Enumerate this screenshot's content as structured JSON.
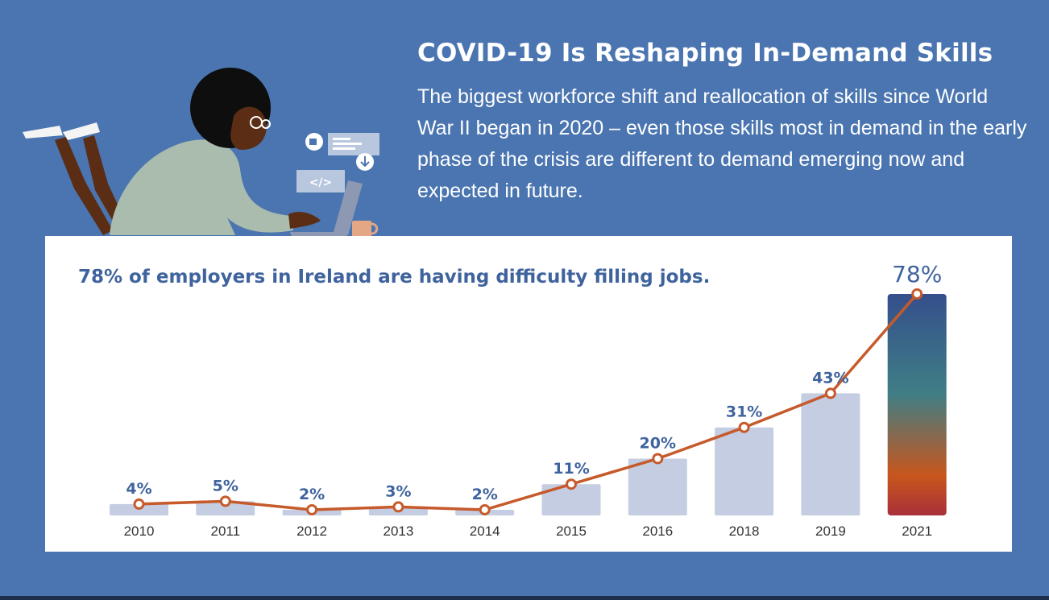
{
  "header": {
    "title": "COVID-19 Is Reshaping In-Demand Skills",
    "intro": "The biggest workforce shift and reallocation of skills since World War II began in 2020 – even those skills most in demand in the early phase of the crisis are different to demand emerging now and expected in future."
  },
  "illustration": {
    "code_tag": "</>",
    "icons": [
      "video-camera-icon",
      "chat-lines-icon",
      "download-icon",
      "code-tag-icon",
      "laptop-icon",
      "coffee-mug-icon"
    ]
  },
  "colors": {
    "background": "#4a75b0",
    "panel": "#ffffff",
    "bar": "#c4cde2",
    "line": "#c65a2b",
    "label": "#3f639d",
    "tick": "#333333",
    "highlight_top": "#354f8c",
    "highlight_mid": "#3f7e85",
    "highlight_orange": "#c8561c",
    "highlight_bottom": "#a8303a"
  },
  "chart_data": {
    "type": "bar",
    "title": "78% of employers in Ireland are having difficulty filling jobs.",
    "categories": [
      "2010",
      "2011",
      "2012",
      "2013",
      "2014",
      "2015",
      "2016",
      "2018",
      "2019",
      "2021"
    ],
    "values": [
      4,
      5,
      2,
      3,
      2,
      11,
      20,
      31,
      43,
      78
    ],
    "value_labels": [
      "4%",
      "5%",
      "2%",
      "3%",
      "2%",
      "11%",
      "20%",
      "31%",
      "43%",
      "78%"
    ],
    "overlay": "line with circular markers through each bar value",
    "highlight": "2021",
    "ylim": [
      0,
      78
    ],
    "grid": false,
    "legend": "none"
  }
}
